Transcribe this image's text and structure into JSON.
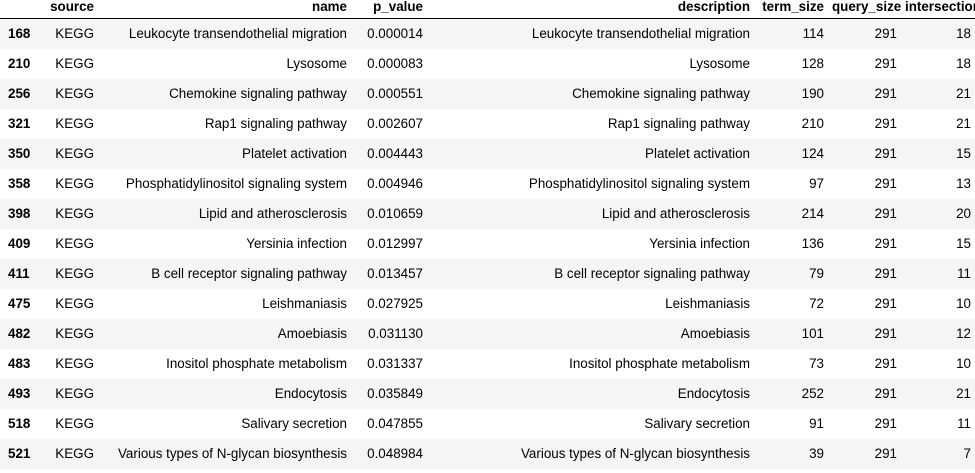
{
  "columns": {
    "index": "",
    "source": "source",
    "name": "name",
    "p_value": "p_value",
    "description": "description",
    "term_size": "term_size",
    "query_size": "query_size",
    "intersection_size": "intersection_size"
  },
  "rows": [
    {
      "index": "168",
      "source": "KEGG",
      "name": "Leukocyte transendothelial migration",
      "p_value": "0.000014",
      "description": "Leukocyte transendothelial migration",
      "term_size": "114",
      "query_size": "291",
      "intersection_size": "18"
    },
    {
      "index": "210",
      "source": "KEGG",
      "name": "Lysosome",
      "p_value": "0.000083",
      "description": "Lysosome",
      "term_size": "128",
      "query_size": "291",
      "intersection_size": "18"
    },
    {
      "index": "256",
      "source": "KEGG",
      "name": "Chemokine signaling pathway",
      "p_value": "0.000551",
      "description": "Chemokine signaling pathway",
      "term_size": "190",
      "query_size": "291",
      "intersection_size": "21"
    },
    {
      "index": "321",
      "source": "KEGG",
      "name": "Rap1 signaling pathway",
      "p_value": "0.002607",
      "description": "Rap1 signaling pathway",
      "term_size": "210",
      "query_size": "291",
      "intersection_size": "21"
    },
    {
      "index": "350",
      "source": "KEGG",
      "name": "Platelet activation",
      "p_value": "0.004443",
      "description": "Platelet activation",
      "term_size": "124",
      "query_size": "291",
      "intersection_size": "15"
    },
    {
      "index": "358",
      "source": "KEGG",
      "name": "Phosphatidylinositol signaling system",
      "p_value": "0.004946",
      "description": "Phosphatidylinositol signaling system",
      "term_size": "97",
      "query_size": "291",
      "intersection_size": "13"
    },
    {
      "index": "398",
      "source": "KEGG",
      "name": "Lipid and atherosclerosis",
      "p_value": "0.010659",
      "description": "Lipid and atherosclerosis",
      "term_size": "214",
      "query_size": "291",
      "intersection_size": "20"
    },
    {
      "index": "409",
      "source": "KEGG",
      "name": "Yersinia infection",
      "p_value": "0.012997",
      "description": "Yersinia infection",
      "term_size": "136",
      "query_size": "291",
      "intersection_size": "15"
    },
    {
      "index": "411",
      "source": "KEGG",
      "name": "B cell receptor signaling pathway",
      "p_value": "0.013457",
      "description": "B cell receptor signaling pathway",
      "term_size": "79",
      "query_size": "291",
      "intersection_size": "11"
    },
    {
      "index": "475",
      "source": "KEGG",
      "name": "Leishmaniasis",
      "p_value": "0.027925",
      "description": "Leishmaniasis",
      "term_size": "72",
      "query_size": "291",
      "intersection_size": "10"
    },
    {
      "index": "482",
      "source": "KEGG",
      "name": "Amoebiasis",
      "p_value": "0.031130",
      "description": "Amoebiasis",
      "term_size": "101",
      "query_size": "291",
      "intersection_size": "12"
    },
    {
      "index": "483",
      "source": "KEGG",
      "name": "Inositol phosphate metabolism",
      "p_value": "0.031337",
      "description": "Inositol phosphate metabolism",
      "term_size": "73",
      "query_size": "291",
      "intersection_size": "10"
    },
    {
      "index": "493",
      "source": "KEGG",
      "name": "Endocytosis",
      "p_value": "0.035849",
      "description": "Endocytosis",
      "term_size": "252",
      "query_size": "291",
      "intersection_size": "21"
    },
    {
      "index": "518",
      "source": "KEGG",
      "name": "Salivary secretion",
      "p_value": "0.047855",
      "description": "Salivary secretion",
      "term_size": "91",
      "query_size": "291",
      "intersection_size": "11"
    },
    {
      "index": "521",
      "source": "KEGG",
      "name": "Various types of N-glycan biosynthesis",
      "p_value": "0.048984",
      "description": "Various types of N-glycan biosynthesis",
      "term_size": "39",
      "query_size": "291",
      "intersection_size": "7"
    }
  ]
}
